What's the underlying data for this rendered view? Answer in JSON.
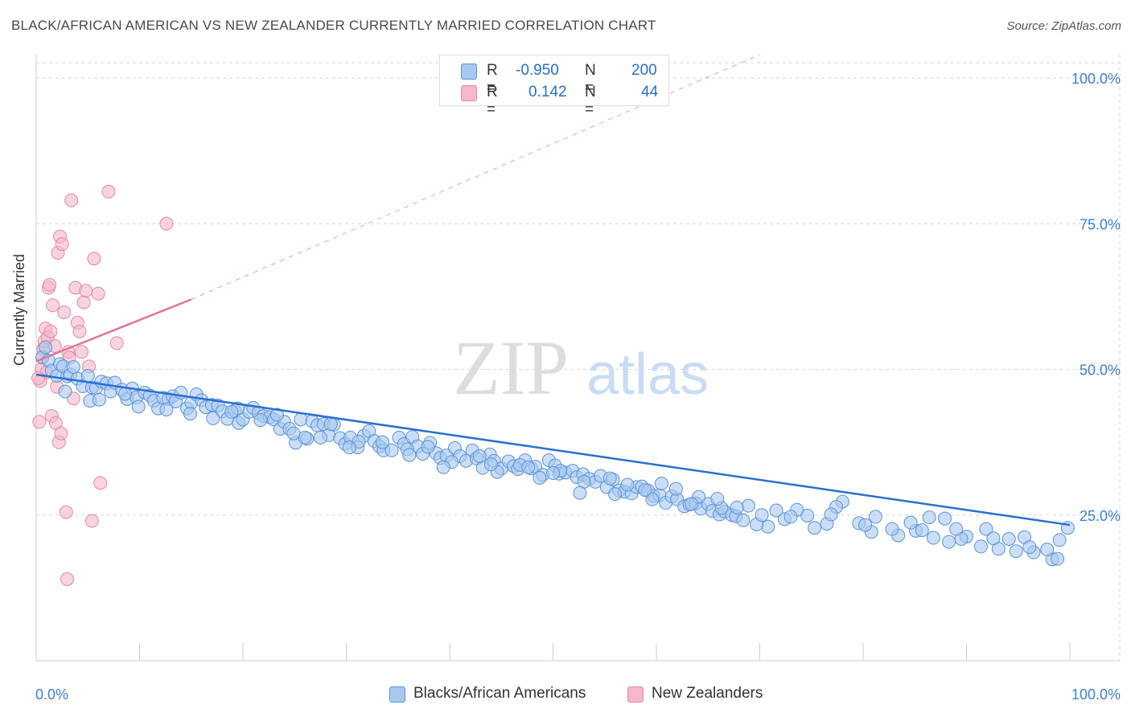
{
  "header": {
    "title": "BLACK/AFRICAN AMERICAN VS NEW ZEALANDER CURRENTLY MARRIED CORRELATION CHART",
    "source": "Source: ZipAtlas.com"
  },
  "watermark": {
    "zip": "ZIP",
    "atlas": "atlas"
  },
  "legend": {
    "rows": [
      {
        "r_label": "R =",
        "r_value": "-0.950",
        "n_label": "N =",
        "n_value": "200",
        "color": "#a9c8f0"
      },
      {
        "r_label": "R =",
        "r_value": "0.142",
        "n_label": "N =",
        "n_value": "44",
        "color": "#f5b8ca"
      }
    ]
  },
  "bottom_legend": [
    {
      "label": "Blacks/African Americans",
      "color": "#a9c8f0"
    },
    {
      "label": "New Zealanders",
      "color": "#f5b8ca"
    }
  ],
  "colors": {
    "blue_fill": "#a9c8f0",
    "blue_stroke": "#5b93d8",
    "blue_line": "#2a6fd0",
    "pink_fill": "#f5b8ca",
    "pink_stroke": "#e38aa6",
    "pink_line": "#e0769a",
    "tick_label": "#3f7fd4",
    "grid": "#d6d6d6"
  },
  "chart_data": {
    "type": "scatter",
    "title": "BLACK/AFRICAN AMERICAN VS NEW ZEALANDER CURRENTLY MARRIED CORRELATION CHART",
    "xlabel": "",
    "ylabel": "Currently Married",
    "xlim": [
      0,
      100
    ],
    "ylim": [
      0,
      104
    ],
    "x_tick_labels": [
      "0.0%",
      "100.0%"
    ],
    "y_ticks": [
      25,
      50,
      75,
      100
    ],
    "y_tick_labels": [
      "25.0%",
      "50.0%",
      "75.0%",
      "100.0%"
    ],
    "grid": true,
    "legend_position": "top-center",
    "series": [
      {
        "name": "Blacks/African Americans",
        "r": -0.95,
        "n": 200,
        "trend": {
          "x": [
            0,
            100
          ],
          "y": [
            49.1,
            23.3
          ],
          "style": "solid"
        },
        "points": [
          [
            0.6,
            52.1
          ],
          [
            0.9,
            53.8
          ],
          [
            1.2,
            51.5
          ],
          [
            1.5,
            49.8
          ],
          [
            2.0,
            48.9
          ],
          [
            2.3,
            50.9
          ],
          [
            2.6,
            50.5
          ],
          [
            3.0,
            48.8
          ],
          [
            3.3,
            49.1
          ],
          [
            3.6,
            50.4
          ],
          [
            4.0,
            48.4
          ],
          [
            4.5,
            47.1
          ],
          [
            5.0,
            48.9
          ],
          [
            5.4,
            46.9
          ],
          [
            5.8,
            46.8
          ],
          [
            6.3,
            47.9
          ],
          [
            6.8,
            47.6
          ],
          [
            7.2,
            46.2
          ],
          [
            7.6,
            47.7
          ],
          [
            8.3,
            46.5
          ],
          [
            8.8,
            44.9
          ],
          [
            9.3,
            46.7
          ],
          [
            9.7,
            45.2
          ],
          [
            10.5,
            46.0
          ],
          [
            11.0,
            45.5
          ],
          [
            11.4,
            44.6
          ],
          [
            11.8,
            43.3
          ],
          [
            12.3,
            45.1
          ],
          [
            12.8,
            44.9
          ],
          [
            13.2,
            45.4
          ],
          [
            13.5,
            44.5
          ],
          [
            14.0,
            46.0
          ],
          [
            14.6,
            43.3
          ],
          [
            15.0,
            44.3
          ],
          [
            15.5,
            45.7
          ],
          [
            16.0,
            44.7
          ],
          [
            16.4,
            43.5
          ],
          [
            17.0,
            43.9
          ],
          [
            17.6,
            43.8
          ],
          [
            18.0,
            42.8
          ],
          [
            18.5,
            41.5
          ],
          [
            19.2,
            42.9
          ],
          [
            19.6,
            40.8
          ],
          [
            20.0,
            41.4
          ],
          [
            20.6,
            42.7
          ],
          [
            21.0,
            43.4
          ],
          [
            21.5,
            42.5
          ],
          [
            22.0,
            42.0
          ],
          [
            22.6,
            41.8
          ],
          [
            23.0,
            41.4
          ],
          [
            23.6,
            39.8
          ],
          [
            24.0,
            41.0
          ],
          [
            24.5,
            39.8
          ],
          [
            25.1,
            37.4
          ],
          [
            25.6,
            41.4
          ],
          [
            26.2,
            38.1
          ],
          [
            26.7,
            41.1
          ],
          [
            27.2,
            40.4
          ],
          [
            27.8,
            40.6
          ],
          [
            28.3,
            38.7
          ],
          [
            28.8,
            40.5
          ],
          [
            29.4,
            38.2
          ],
          [
            29.9,
            37.2
          ],
          [
            30.4,
            38.3
          ],
          [
            31.1,
            36.6
          ],
          [
            31.7,
            38.6
          ],
          [
            32.2,
            39.4
          ],
          [
            32.7,
            37.7
          ],
          [
            33.2,
            36.8
          ],
          [
            33.6,
            36.1
          ],
          [
            34.4,
            36.1
          ],
          [
            35.1,
            38.3
          ],
          [
            35.6,
            37.2
          ],
          [
            36.4,
            38.4
          ],
          [
            36.9,
            36.8
          ],
          [
            37.4,
            35.5
          ],
          [
            38.1,
            37.4
          ],
          [
            38.7,
            35.6
          ],
          [
            39.1,
            34.8
          ],
          [
            39.7,
            35.2
          ],
          [
            40.5,
            36.5
          ],
          [
            41.0,
            35.1
          ],
          [
            41.6,
            34.3
          ],
          [
            42.2,
            36.1
          ],
          [
            42.6,
            34.7
          ],
          [
            43.2,
            33.1
          ],
          [
            43.9,
            35.4
          ],
          [
            44.3,
            34.3
          ],
          [
            45.0,
            33.0
          ],
          [
            45.7,
            34.2
          ],
          [
            46.2,
            33.4
          ],
          [
            46.6,
            32.9
          ],
          [
            47.3,
            34.4
          ],
          [
            47.9,
            33.0
          ],
          [
            48.3,
            33.3
          ],
          [
            49.0,
            31.9
          ],
          [
            49.6,
            34.4
          ],
          [
            50.2,
            33.5
          ],
          [
            50.6,
            32.1
          ],
          [
            51.2,
            32.3
          ],
          [
            51.9,
            32.6
          ],
          [
            52.3,
            31.5
          ],
          [
            52.9,
            32.0
          ],
          [
            53.5,
            31.2
          ],
          [
            54.1,
            30.7
          ],
          [
            54.6,
            31.7
          ],
          [
            55.2,
            29.8
          ],
          [
            55.8,
            31.1
          ],
          [
            56.4,
            29.2
          ],
          [
            56.9,
            29.0
          ],
          [
            57.6,
            28.7
          ],
          [
            58.1,
            29.8
          ],
          [
            58.6,
            29.9
          ],
          [
            59.2,
            29.2
          ],
          [
            59.7,
            28.3
          ],
          [
            60.3,
            28.4
          ],
          [
            60.9,
            27.1
          ],
          [
            61.5,
            28.2
          ],
          [
            62.0,
            27.7
          ],
          [
            62.7,
            26.5
          ],
          [
            63.2,
            26.8
          ],
          [
            63.8,
            27.0
          ],
          [
            64.3,
            26.1
          ],
          [
            65.0,
            26.9
          ],
          [
            65.4,
            25.7
          ],
          [
            66.1,
            25.1
          ],
          [
            66.6,
            25.6
          ],
          [
            67.3,
            25.0
          ],
          [
            67.7,
            24.8
          ],
          [
            68.4,
            24.1
          ],
          [
            5.2,
            44.6
          ],
          [
            8.6,
            45.8
          ],
          [
            12.6,
            43.1
          ],
          [
            17.1,
            41.6
          ],
          [
            19.5,
            43.3
          ],
          [
            21.7,
            41.3
          ],
          [
            23.3,
            42.2
          ],
          [
            26.0,
            38.3
          ],
          [
            28.5,
            40.6
          ],
          [
            31.2,
            37.6
          ],
          [
            33.5,
            37.5
          ],
          [
            35.9,
            36.3
          ],
          [
            37.9,
            36.7
          ],
          [
            40.2,
            34.1
          ],
          [
            42.9,
            35.1
          ],
          [
            44.6,
            32.4
          ],
          [
            46.8,
            33.6
          ],
          [
            48.7,
            31.4
          ],
          [
            50.7,
            32.6
          ],
          [
            53.0,
            30.7
          ],
          [
            55.5,
            31.3
          ],
          [
            57.2,
            30.2
          ],
          [
            59.6,
            27.7
          ],
          [
            61.9,
            29.5
          ],
          [
            64.1,
            28.1
          ],
          [
            66.3,
            26.2
          ],
          [
            68.9,
            26.6
          ],
          [
            70.8,
            23.0
          ],
          [
            72.4,
            24.3
          ],
          [
            74.6,
            24.9
          ],
          [
            76.5,
            23.5
          ],
          [
            78.0,
            27.3
          ],
          [
            79.6,
            23.6
          ],
          [
            81.2,
            24.7
          ],
          [
            83.4,
            21.5
          ],
          [
            85.1,
            22.3
          ],
          [
            86.8,
            21.1
          ],
          [
            88.3,
            20.4
          ],
          [
            90.0,
            21.3
          ],
          [
            91.4,
            19.6
          ],
          [
            93.1,
            19.2
          ],
          [
            94.8,
            18.8
          ],
          [
            96.5,
            18.6
          ],
          [
            98.3,
            17.4
          ],
          [
            99.8,
            22.8
          ],
          [
            69.7,
            23.4
          ],
          [
            73.6,
            25.9
          ],
          [
            77.4,
            26.4
          ],
          [
            80.8,
            22.1
          ],
          [
            84.6,
            23.7
          ],
          [
            87.9,
            24.4
          ],
          [
            91.9,
            22.6
          ],
          [
            95.6,
            21.2
          ],
          [
            97.8,
            19.1
          ],
          [
            99.0,
            20.7
          ],
          [
            2.8,
            46.2
          ],
          [
            6.1,
            44.8
          ],
          [
            9.9,
            43.6
          ],
          [
            14.9,
            42.4
          ],
          [
            24.9,
            39.0
          ],
          [
            30.3,
            36.6
          ],
          [
            39.4,
            33.2
          ],
          [
            47.6,
            33.2
          ],
          [
            52.6,
            28.8
          ],
          [
            58.9,
            29.3
          ],
          [
            63.4,
            26.9
          ],
          [
            67.8,
            26.3
          ],
          [
            71.6,
            25.8
          ],
          [
            75.3,
            22.8
          ],
          [
            82.8,
            22.6
          ],
          [
            86.4,
            24.6
          ],
          [
            89.5,
            20.9
          ],
          [
            92.6,
            21.0
          ],
          [
            96.1,
            19.5
          ],
          [
            98.8,
            17.5
          ],
          [
            18.9,
            42.7
          ],
          [
            27.5,
            38.3
          ],
          [
            36.1,
            35.3
          ],
          [
            44.0,
            33.7
          ],
          [
            50.0,
            32.2
          ],
          [
            56.0,
            28.6
          ],
          [
            60.5,
            30.4
          ],
          [
            65.9,
            27.8
          ],
          [
            70.2,
            25.0
          ],
          [
            73.0,
            24.7
          ],
          [
            76.9,
            25.1
          ],
          [
            80.2,
            23.3
          ],
          [
            85.7,
            22.4
          ],
          [
            89.0,
            22.6
          ],
          [
            94.1,
            20.9
          ]
        ]
      },
      {
        "name": "New Zealanders",
        "r": 0.142,
        "n": 44,
        "trend": {
          "x": [
            0,
            15
          ],
          "y": [
            51.4,
            62.0
          ],
          "style": "solid",
          "extension": {
            "x": [
              15,
              70
            ],
            "y": [
              62.0,
              104.0
            ],
            "style": "dashed"
          }
        },
        "points": [
          [
            0.3,
            41.0
          ],
          [
            0.4,
            48.0
          ],
          [
            0.5,
            50.0
          ],
          [
            0.6,
            52.0
          ],
          [
            0.7,
            53.5
          ],
          [
            0.8,
            54.8
          ],
          [
            0.9,
            57.0
          ],
          [
            1.0,
            49.5
          ],
          [
            1.1,
            55.5
          ],
          [
            1.2,
            64.0
          ],
          [
            1.3,
            64.5
          ],
          [
            1.4,
            56.5
          ],
          [
            1.5,
            42.0
          ],
          [
            1.6,
            61.0
          ],
          [
            1.8,
            54.0
          ],
          [
            1.9,
            40.8
          ],
          [
            2.0,
            47.0
          ],
          [
            2.1,
            70.0
          ],
          [
            2.2,
            37.5
          ],
          [
            2.3,
            72.8
          ],
          [
            2.4,
            39.0
          ],
          [
            2.5,
            71.5
          ],
          [
            2.7,
            59.8
          ],
          [
            2.9,
            25.5
          ],
          [
            3.0,
            14.0
          ],
          [
            3.1,
            53.0
          ],
          [
            3.2,
            52.0
          ],
          [
            3.4,
            79.0
          ],
          [
            3.6,
            45.0
          ],
          [
            3.8,
            64.0
          ],
          [
            4.0,
            58.0
          ],
          [
            4.2,
            56.5
          ],
          [
            4.4,
            53.0
          ],
          [
            4.6,
            61.5
          ],
          [
            4.8,
            63.5
          ],
          [
            5.1,
            50.5
          ],
          [
            5.4,
            24.0
          ],
          [
            5.6,
            69.0
          ],
          [
            6.0,
            63.0
          ],
          [
            6.2,
            30.5
          ],
          [
            7.0,
            80.5
          ],
          [
            7.8,
            54.5
          ],
          [
            12.6,
            75.0
          ],
          [
            0.2,
            48.5
          ]
        ]
      }
    ]
  }
}
